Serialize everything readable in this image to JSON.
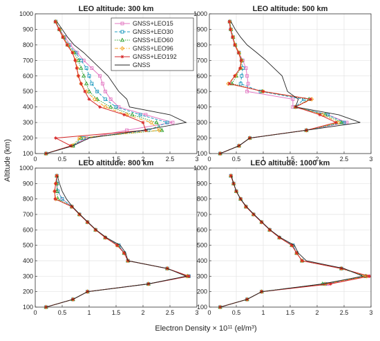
{
  "figure": {
    "ylabel": "Altitude (km)",
    "xlabel_main": "Electron Density × 10",
    "xlabel_exp": "11",
    "xlabel_unit": " (el/m",
    "xlabel_unit_exp": "3",
    "xlabel_close": ")"
  },
  "series_style": [
    {
      "name": "GNSS+LEO15",
      "color": "#e377c2",
      "dash": "",
      "marker": "square"
    },
    {
      "name": "GNSS+LEO30",
      "color": "#1f9bbf",
      "dash": "4,2",
      "marker": "square"
    },
    {
      "name": "GNSS+LEO60",
      "color": "#2ca02c",
      "dash": "1.5,1.5",
      "marker": "triangle"
    },
    {
      "name": "GNSS+LEO96",
      "color": "#f5a623",
      "dash": "5,2,1,2",
      "marker": "diamond"
    },
    {
      "name": "GNSS+LEO192",
      "color": "#d62728",
      "dash": "",
      "marker": "star"
    },
    {
      "name": "GNSS",
      "color": "#222222",
      "dash": "",
      "marker": "none"
    }
  ],
  "chart_data": [
    {
      "type": "line",
      "title": "LEO altitude: 300 km",
      "xlim": [
        0,
        3
      ],
      "ylim": [
        100,
        1000
      ],
      "xticks": [
        "0",
        "0.5",
        "1",
        "1.5",
        "2",
        "2.5",
        "3"
      ],
      "yticks": [
        "100",
        "200",
        "300",
        "400",
        "500",
        "600",
        "700",
        "800",
        "900",
        "1000"
      ],
      "legend": "top-right",
      "y": [
        100,
        150,
        200,
        250,
        300,
        350,
        400,
        450,
        500,
        550,
        600,
        650,
        700,
        750,
        800,
        850,
        900,
        950
      ],
      "series": [
        {
          "name": "GNSS+LEO15",
          "x": [
            0.2,
            0.7,
            0.95,
            1.7,
            2.55,
            2.05,
            1.55,
            1.4,
            1.3,
            1.25,
            1.2,
            1.05,
            0.9,
            0.78,
            0.65,
            0.55,
            0.45,
            0.38
          ]
        },
        {
          "name": "GNSS+LEO30",
          "x": [
            0.2,
            0.7,
            0.9,
            2.1,
            2.45,
            1.95,
            1.5,
            1.3,
            1.15,
            1.05,
            1.0,
            0.95,
            0.85,
            0.75,
            0.62,
            0.53,
            0.45,
            0.38
          ]
        },
        {
          "name": "GNSS+LEO60",
          "x": [
            0.2,
            0.7,
            0.85,
            2.35,
            2.25,
            1.8,
            1.4,
            1.15,
            1.0,
            0.95,
            0.9,
            0.85,
            0.8,
            0.72,
            0.6,
            0.52,
            0.45,
            0.38
          ]
        },
        {
          "name": "GNSS+LEO96",
          "x": [
            0.2,
            0.68,
            0.82,
            2.3,
            2.15,
            1.7,
            1.3,
            1.1,
            0.95,
            0.85,
            0.8,
            0.78,
            0.75,
            0.7,
            0.6,
            0.52,
            0.45,
            0.38
          ]
        },
        {
          "name": "GNSS+LEO192",
          "x": [
            0.2,
            0.66,
            0.38,
            2.05,
            2.0,
            1.65,
            1.2,
            1.0,
            0.92,
            0.85,
            0.8,
            0.77,
            0.74,
            0.69,
            0.59,
            0.51,
            0.44,
            0.37
          ]
        },
        {
          "name": "GNSS",
          "x": [
            0.2,
            0.7,
            1.0,
            2.0,
            2.8,
            2.5,
            1.75,
            1.7,
            1.55,
            1.45,
            1.35,
            1.2,
            1.05,
            0.9,
            0.72,
            0.6,
            0.5,
            0.4
          ]
        }
      ]
    },
    {
      "type": "line",
      "title": "LEO altitude: 500 km",
      "xlim": [
        0,
        3
      ],
      "ylim": [
        100,
        1000
      ],
      "xticks": [
        "0",
        "0.5",
        "1",
        "1.5",
        "2",
        "2.5",
        "3"
      ],
      "yticks": [
        "100",
        "200",
        "300",
        "400",
        "500",
        "600",
        "700",
        "800",
        "900",
        "1000"
      ],
      "legend": "",
      "y": [
        100,
        150,
        200,
        250,
        300,
        350,
        400,
        450,
        500,
        550,
        600,
        650,
        700,
        750,
        800,
        850,
        900,
        950
      ],
      "series": [
        {
          "name": "GNSS+LEO15",
          "x": [
            0.2,
            0.55,
            0.75,
            1.8,
            2.55,
            2.2,
            1.55,
            1.55,
            0.7,
            0.72,
            0.7,
            0.68,
            0.62,
            0.55,
            0.48,
            0.44,
            0.4,
            0.38
          ]
        },
        {
          "name": "GNSS+LEO30",
          "x": [
            0.2,
            0.55,
            0.75,
            1.8,
            2.5,
            2.2,
            1.6,
            1.75,
            0.95,
            0.58,
            0.6,
            0.62,
            0.6,
            0.55,
            0.48,
            0.44,
            0.4,
            0.38
          ]
        },
        {
          "name": "GNSS+LEO60",
          "x": [
            0.2,
            0.55,
            0.75,
            1.8,
            2.45,
            2.15,
            1.6,
            1.85,
            0.98,
            0.42,
            0.5,
            0.58,
            0.6,
            0.55,
            0.48,
            0.44,
            0.4,
            0.38
          ]
        },
        {
          "name": "GNSS+LEO96",
          "x": [
            0.2,
            0.55,
            0.75,
            1.8,
            2.4,
            2.1,
            1.6,
            1.9,
            1.0,
            0.35,
            0.48,
            0.58,
            0.6,
            0.55,
            0.48,
            0.44,
            0.4,
            0.38
          ]
        },
        {
          "name": "GNSS+LEO192",
          "x": [
            0.2,
            0.55,
            0.75,
            1.8,
            2.35,
            2.05,
            1.6,
            1.88,
            1.0,
            0.37,
            0.47,
            0.57,
            0.59,
            0.54,
            0.47,
            0.43,
            0.39,
            0.37
          ]
        },
        {
          "name": "GNSS",
          "x": [
            0.2,
            0.55,
            0.75,
            1.8,
            2.8,
            2.4,
            1.6,
            1.65,
            1.45,
            1.4,
            1.35,
            1.2,
            1.05,
            0.88,
            0.7,
            0.58,
            0.48,
            0.4
          ]
        }
      ]
    },
    {
      "type": "line",
      "title": "LEO altitude: 800 km",
      "xlim": [
        0,
        3
      ],
      "ylim": [
        100,
        1000
      ],
      "xticks": [
        "0",
        "0.5",
        "1",
        "1.5",
        "2",
        "2.5",
        "3"
      ],
      "yticks": [
        "100",
        "200",
        "300",
        "400",
        "500",
        "600",
        "700",
        "800",
        "900",
        "1000"
      ],
      "legend": "",
      "y": [
        100,
        150,
        200,
        250,
        300,
        350,
        400,
        450,
        500,
        550,
        600,
        650,
        700,
        750,
        800,
        850,
        900,
        950
      ],
      "series": [
        {
          "name": "GNSS+LEO15",
          "x": [
            0.2,
            0.7,
            0.97,
            2.1,
            2.85,
            2.45,
            1.72,
            1.65,
            1.55,
            1.3,
            1.12,
            0.97,
            0.82,
            0.68,
            0.5,
            0.42,
            0.4,
            0.4
          ]
        },
        {
          "name": "GNSS+LEO30",
          "x": [
            0.2,
            0.7,
            0.97,
            2.1,
            2.85,
            2.45,
            1.72,
            1.65,
            1.55,
            1.3,
            1.12,
            0.97,
            0.82,
            0.68,
            0.5,
            0.42,
            0.4,
            0.4
          ]
        },
        {
          "name": "GNSS+LEO60",
          "x": [
            0.2,
            0.7,
            0.97,
            2.1,
            2.83,
            2.45,
            1.72,
            1.65,
            1.53,
            1.3,
            1.12,
            0.97,
            0.82,
            0.68,
            0.42,
            0.4,
            0.4,
            0.4
          ]
        },
        {
          "name": "GNSS+LEO96",
          "x": [
            0.2,
            0.7,
            0.97,
            2.1,
            2.82,
            2.45,
            1.72,
            1.65,
            1.52,
            1.3,
            1.12,
            0.97,
            0.82,
            0.68,
            0.38,
            0.36,
            0.38,
            0.4
          ]
        },
        {
          "name": "GNSS+LEO192",
          "x": [
            0.2,
            0.7,
            0.97,
            2.1,
            2.85,
            2.45,
            1.72,
            1.65,
            1.52,
            1.3,
            1.12,
            0.97,
            0.82,
            0.68,
            0.37,
            0.36,
            0.38,
            0.4
          ]
        },
        {
          "name": "GNSS",
          "x": [
            0.2,
            0.7,
            0.97,
            2.1,
            2.8,
            2.45,
            1.72,
            1.68,
            1.58,
            1.32,
            1.13,
            0.98,
            0.83,
            0.69,
            0.58,
            0.5,
            0.45,
            0.41
          ]
        }
      ]
    },
    {
      "type": "line",
      "title": "LEO altitude: 1000 km",
      "xlim": [
        0,
        3
      ],
      "ylim": [
        100,
        1000
      ],
      "xticks": [
        "0",
        "0.5",
        "1",
        "1.5",
        "2",
        "2.5",
        "3"
      ],
      "yticks": [
        "100",
        "200",
        "300",
        "400",
        "500",
        "600",
        "700",
        "800",
        "900",
        "1000"
      ],
      "legend": "",
      "y": [
        100,
        150,
        200,
        250,
        300,
        350,
        400,
        450,
        500,
        550,
        600,
        650,
        700,
        750,
        800,
        850,
        900,
        950
      ],
      "series": [
        {
          "name": "GNSS+LEO15",
          "x": [
            0.2,
            0.7,
            0.97,
            2.2,
            2.95,
            2.45,
            1.72,
            1.62,
            1.55,
            1.3,
            1.12,
            0.97,
            0.82,
            0.68,
            0.58,
            0.5,
            0.45,
            0.4
          ]
        },
        {
          "name": "GNSS+LEO30",
          "x": [
            0.2,
            0.7,
            0.97,
            2.15,
            2.9,
            2.45,
            1.72,
            1.62,
            1.55,
            1.3,
            1.12,
            0.97,
            0.82,
            0.68,
            0.58,
            0.5,
            0.45,
            0.4
          ]
        },
        {
          "name": "GNSS+LEO60",
          "x": [
            0.2,
            0.7,
            0.97,
            2.1,
            2.9,
            2.45,
            1.72,
            1.62,
            1.53,
            1.3,
            1.12,
            0.97,
            0.82,
            0.68,
            0.58,
            0.5,
            0.45,
            0.4
          ]
        },
        {
          "name": "GNSS+LEO96",
          "x": [
            0.2,
            0.7,
            0.97,
            2.15,
            2.92,
            2.45,
            1.72,
            1.62,
            1.53,
            1.3,
            1.12,
            0.97,
            0.82,
            0.68,
            0.58,
            0.5,
            0.45,
            0.4
          ]
        },
        {
          "name": "GNSS+LEO192",
          "x": [
            0.2,
            0.7,
            0.97,
            2.25,
            2.97,
            2.45,
            1.72,
            1.62,
            1.53,
            1.3,
            1.12,
            0.97,
            0.82,
            0.68,
            0.58,
            0.5,
            0.45,
            0.4
          ]
        },
        {
          "name": "GNSS",
          "x": [
            0.2,
            0.7,
            0.97,
            2.1,
            2.85,
            2.5,
            1.8,
            1.65,
            1.58,
            1.32,
            1.13,
            0.98,
            0.83,
            0.69,
            0.58,
            0.5,
            0.45,
            0.41
          ]
        }
      ]
    }
  ]
}
